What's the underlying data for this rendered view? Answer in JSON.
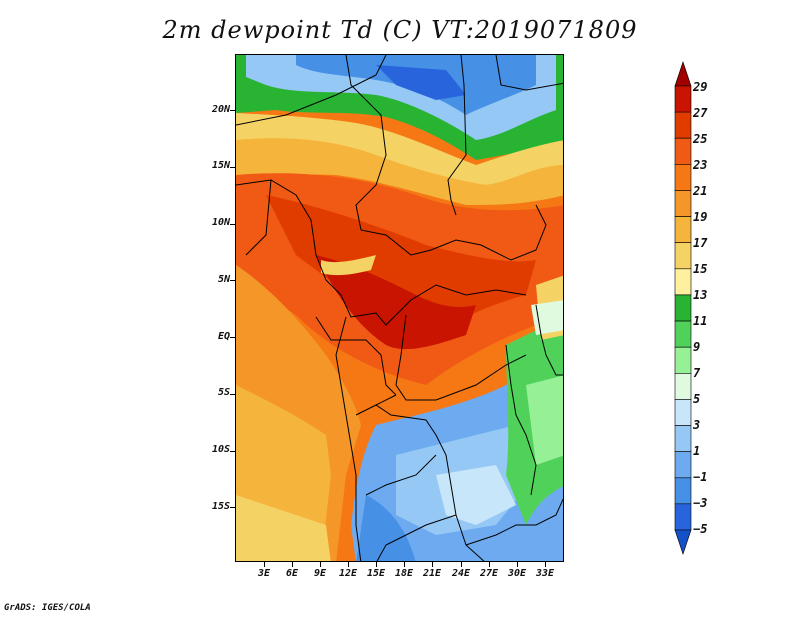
{
  "title": "2m dewpoint Td (C) VT:2019071809",
  "footer": "GrADS: IGES/COLA",
  "map": {
    "region": "Central Africa",
    "lat_labels": [
      "20N",
      "15N",
      "10N",
      "5N",
      "EQ",
      "5S",
      "10S",
      "15S"
    ],
    "lon_labels": [
      "3E",
      "6E",
      "9E",
      "12E",
      "15E",
      "18E",
      "21E",
      "24E",
      "27E",
      "30E",
      "33E"
    ]
  },
  "colorbar": {
    "labels": [
      "29",
      "27",
      "25",
      "23",
      "21",
      "19",
      "17",
      "15",
      "13",
      "11",
      "9",
      "7",
      "5",
      "3",
      "1",
      "−1",
      "−3",
      "−5"
    ],
    "colors": [
      "#a00000",
      "#c81400",
      "#e03c00",
      "#f05a14",
      "#f57814",
      "#f59628",
      "#f5b43c",
      "#f5d264",
      "#fff0a0",
      "#28b432",
      "#50d25a",
      "#96f096",
      "#e0fae0",
      "#c8e6fa",
      "#96c8f5",
      "#6eaaf0",
      "#4690e6",
      "#2864dc",
      "#1450c8"
    ]
  }
}
